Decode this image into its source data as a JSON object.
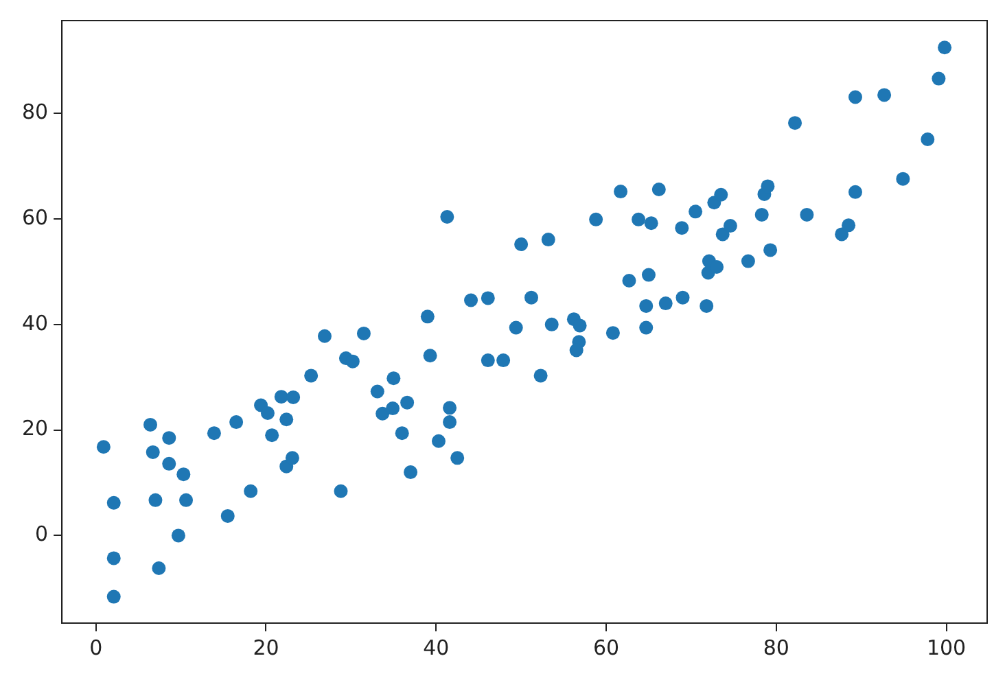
{
  "chart_data": {
    "type": "scatter",
    "marker": "circle",
    "grid": false,
    "xlim": [
      -4,
      104.8
    ],
    "ylim": [
      -16.6,
      97.6
    ],
    "xticks": [
      0,
      20,
      40,
      60,
      80,
      100
    ],
    "yticks": [
      0,
      20,
      40,
      60,
      80
    ],
    "series": [
      {
        "color": "#1f77b4",
        "x": [
          0.9,
          2.1,
          2.1,
          2.1,
          6.4,
          6.7,
          7.0,
          7.4,
          8.6,
          8.6,
          10.3,
          10.6,
          9.7,
          13.9,
          15.5,
          16.5,
          18.2,
          19.4,
          20.2,
          20.7,
          21.8,
          22.4,
          23.2,
          22.4,
          23.1,
          25.3,
          26.9,
          28.8,
          29.4,
          30.2,
          31.5,
          33.1,
          33.7,
          35.0,
          34.9,
          36.6,
          36.0,
          37.0,
          39.0,
          39.3,
          40.3,
          41.3,
          41.6,
          41.6,
          42.5,
          44.1,
          46.1,
          46.1,
          47.9,
          49.4,
          50.0,
          51.2,
          52.3,
          53.2,
          53.6,
          56.2,
          56.9,
          56.8,
          56.5,
          58.8,
          60.8,
          61.7,
          62.7,
          63.8,
          65.3,
          65.0,
          64.7,
          64.7,
          66.2,
          67.0,
          68.9,
          69.0,
          70.5,
          71.8,
          72.1,
          72.0,
          73.0,
          72.7,
          73.5,
          73.7,
          74.6,
          76.7,
          78.3,
          78.6,
          79.0,
          79.3,
          82.2,
          83.6,
          87.7,
          88.5,
          89.3,
          89.3,
          92.7,
          94.9,
          97.8,
          99.1,
          99.8
        ],
        "values": [
          16.8,
          6.2,
          -4.3,
          -11.6,
          21.0,
          15.8,
          6.7,
          -6.2,
          18.5,
          13.6,
          11.6,
          6.7,
          0.0,
          19.4,
          3.7,
          21.5,
          8.4,
          24.7,
          23.2,
          19.0,
          26.3,
          22.0,
          26.2,
          13.1,
          14.7,
          30.3,
          37.8,
          8.4,
          33.6,
          33.0,
          38.3,
          27.3,
          23.1,
          29.8,
          24.1,
          25.2,
          19.4,
          12.0,
          41.5,
          34.1,
          17.9,
          60.4,
          24.2,
          21.5,
          14.7,
          44.6,
          45.0,
          33.2,
          33.2,
          39.4,
          55.2,
          45.1,
          30.3,
          56.1,
          40.0,
          41.0,
          39.8,
          36.7,
          35.1,
          59.9,
          38.4,
          65.2,
          48.3,
          59.9,
          59.2,
          49.4,
          43.5,
          39.4,
          65.6,
          44.0,
          58.3,
          45.1,
          61.4,
          43.5,
          52.0,
          49.8,
          50.9,
          63.1,
          64.6,
          57.1,
          58.7,
          52.0,
          60.8,
          64.7,
          66.2,
          54.1,
          78.2,
          60.8,
          57.1,
          58.8,
          83.1,
          65.1,
          83.5,
          67.6,
          75.1,
          86.6,
          92.5
        ]
      }
    ]
  }
}
